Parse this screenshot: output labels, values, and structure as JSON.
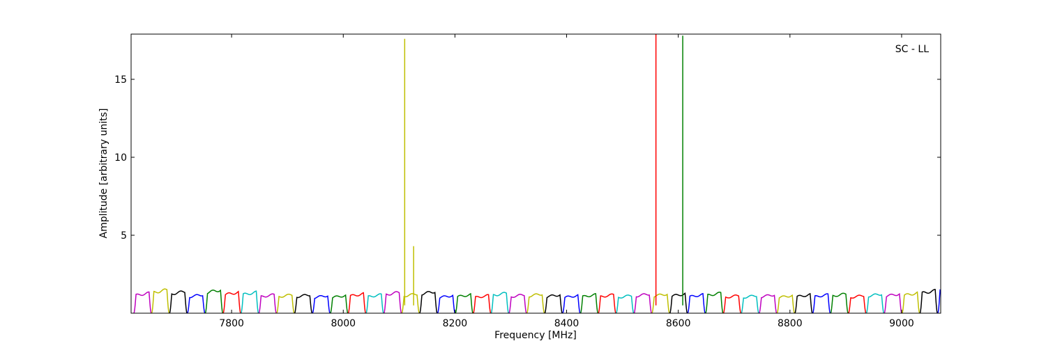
{
  "chart_data": {
    "type": "line",
    "title": "",
    "annotation": "SC - LL",
    "xlabel": "Frequency [MHz]",
    "ylabel": "Amplitude [arbitrary units]",
    "xlim": [
      7620,
      9070
    ],
    "ylim": [
      0,
      17.9
    ],
    "xticks": [
      7800,
      8000,
      8200,
      8400,
      8600,
      8800,
      9000
    ],
    "yticks": [
      5,
      10,
      15
    ],
    "grid": false,
    "legend": "none",
    "channel_shape": {
      "start_mhz": 7625,
      "width_mhz": 32,
      "color_cycle": [
        "#bf00bf",
        "#bfbf00",
        "#000000",
        "#0000ff",
        "#008000",
        "#ff0000",
        "#00bfbf"
      ]
    },
    "channel_peaks": [
      1.25,
      1.45,
      1.35,
      1.15,
      1.45,
      1.3,
      1.3,
      1.15,
      1.15,
      1.15,
      1.1,
      1.1,
      1.2,
      1.15,
      1.3,
      1.2,
      1.35,
      1.1,
      1.15,
      1.1,
      1.25,
      1.15,
      1.2,
      1.15,
      1.1,
      1.15,
      1.15,
      1.1,
      1.2,
      1.2,
      1.2,
      1.15,
      1.25,
      1.1,
      1.1,
      1.15,
      1.1,
      1.15,
      1.15,
      1.2,
      1.1,
      1.2,
      1.2,
      1.25,
      1.4,
      1.55,
      1.3
    ],
    "spikes": [
      {
        "x": 8110,
        "y": 17.6,
        "color": "#bfbf00"
      },
      {
        "x": 8126,
        "y": 4.3,
        "color": "#bfbf00"
      },
      {
        "x": 8560,
        "y": 17.9,
        "color": "#ff0000"
      },
      {
        "x": 8608,
        "y": 17.8,
        "color": "#008000"
      }
    ]
  }
}
